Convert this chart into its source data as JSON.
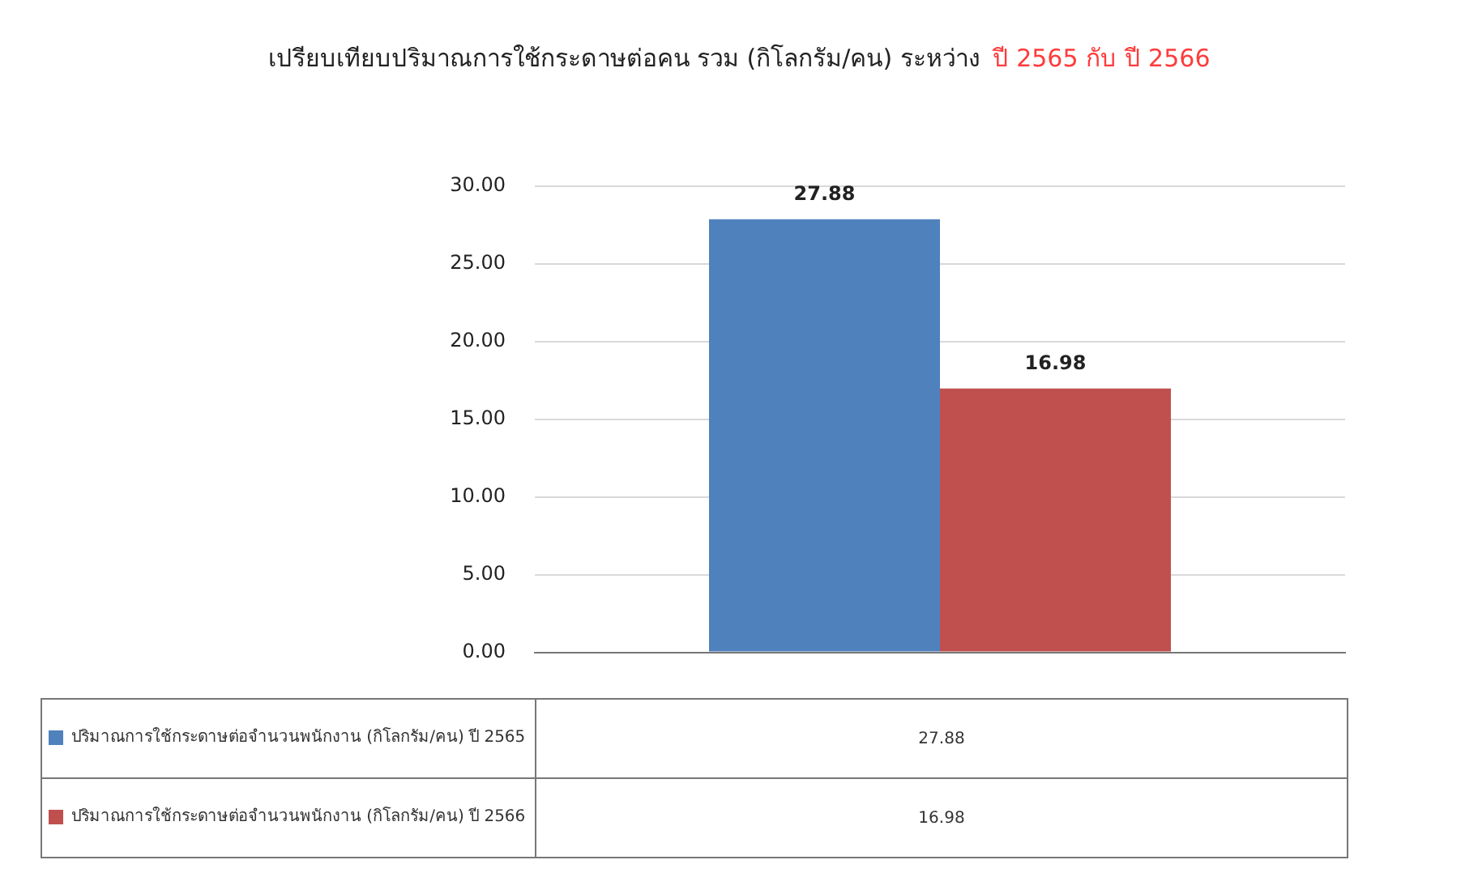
{
  "chart_data": {
    "type": "bar",
    "title": "เปรียบเทียบปริมาณการใช้กระดาษต่อคน รวม (กิโลกรัม/คน) ระหว่าง",
    "subtitle": "ปี 2565 กับ ปี 2566",
    "categories": [
      null
    ],
    "series": [
      {
        "name": "ปริมาณการใช้กระดาษต่อจำนวนพนักงาน (กิโลกรัม/คน) ปี 2565",
        "color": "#4f81bd",
        "values": [
          27.88
        ]
      },
      {
        "name": "ปริมาณการใช้กระดาษต่อจำนวนพนักงาน (กิโลกรัม/คน) ปี 2566",
        "color": "#c0504d",
        "values": [
          16.98
        ]
      }
    ],
    "annotations": [
      "27.88",
      "16.98"
    ],
    "ylim": [
      0,
      30
    ],
    "yticks": [
      {
        "value": 0,
        "label": "0.00"
      },
      {
        "value": 5,
        "label": "5.00"
      },
      {
        "value": 10,
        "label": "10.00"
      },
      {
        "value": 15,
        "label": "15.00"
      },
      {
        "value": 20,
        "label": "20.00"
      },
      {
        "value": 25,
        "label": "25.00"
      },
      {
        "value": 30,
        "label": "30.00"
      }
    ],
    "grid": "y",
    "legend": "bottom",
    "data_labels": true
  }
}
